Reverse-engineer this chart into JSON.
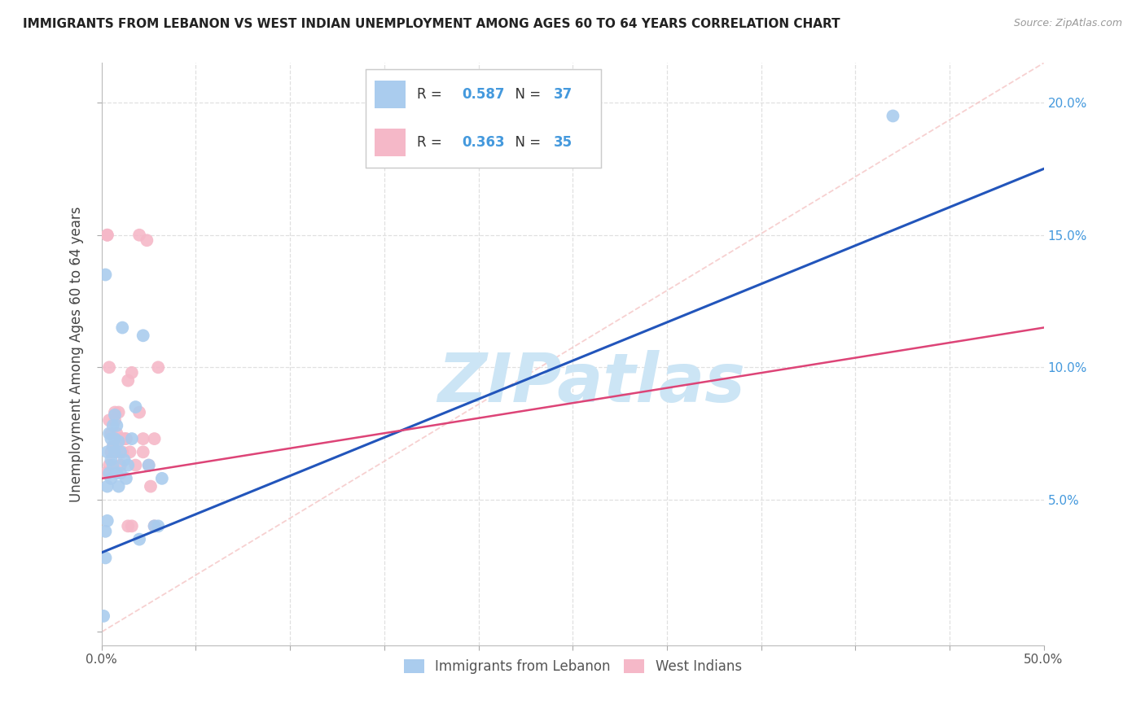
{
  "title": "IMMIGRANTS FROM LEBANON VS WEST INDIAN UNEMPLOYMENT AMONG AGES 60 TO 64 YEARS CORRELATION CHART",
  "source": "Source: ZipAtlas.com",
  "ylabel": "Unemployment Among Ages 60 to 64 years",
  "xlim": [
    0,
    0.5
  ],
  "ylim": [
    -0.005,
    0.215
  ],
  "background_color": "#ffffff",
  "grid_color": "#e0e0e0",
  "watermark_text": "ZIPatlas",
  "watermark_color": "#cce5f5",
  "lebanon_color": "#aaccee",
  "west_indian_color": "#f5b8c8",
  "lebanon_line_color": "#2255bb",
  "west_indian_line_color": "#dd4477",
  "diagonal_color": "#f5c5c5",
  "R_lebanon": 0.587,
  "N_lebanon": 37,
  "R_west_indian": 0.363,
  "N_west_indian": 35,
  "lebanon_line_x0": 0.0,
  "lebanon_line_y0": 0.03,
  "lebanon_line_x1": 0.5,
  "lebanon_line_y1": 0.175,
  "west_indian_line_x0": 0.0,
  "west_indian_line_y0": 0.058,
  "west_indian_line_x1": 0.5,
  "west_indian_line_y1": 0.115,
  "lebanon_x": [
    0.001,
    0.002,
    0.002,
    0.003,
    0.003,
    0.003,
    0.004,
    0.004,
    0.005,
    0.005,
    0.005,
    0.006,
    0.006,
    0.006,
    0.007,
    0.007,
    0.007,
    0.008,
    0.008,
    0.009,
    0.009,
    0.01,
    0.01,
    0.011,
    0.012,
    0.013,
    0.014,
    0.016,
    0.018,
    0.02,
    0.022,
    0.025,
    0.028,
    0.03,
    0.032,
    0.42,
    0.002
  ],
  "lebanon_y": [
    0.006,
    0.028,
    0.038,
    0.042,
    0.055,
    0.068,
    0.06,
    0.075,
    0.058,
    0.065,
    0.073,
    0.063,
    0.07,
    0.078,
    0.068,
    0.073,
    0.082,
    0.06,
    0.078,
    0.055,
    0.072,
    0.06,
    0.068,
    0.115,
    0.065,
    0.058,
    0.063,
    0.073,
    0.085,
    0.035,
    0.112,
    0.063,
    0.04,
    0.04,
    0.058,
    0.195,
    0.135
  ],
  "west_indian_x": [
    0.002,
    0.003,
    0.004,
    0.004,
    0.005,
    0.005,
    0.006,
    0.007,
    0.007,
    0.008,
    0.008,
    0.009,
    0.01,
    0.01,
    0.011,
    0.012,
    0.013,
    0.014,
    0.015,
    0.016,
    0.018,
    0.02,
    0.022,
    0.022,
    0.024,
    0.025,
    0.026,
    0.028,
    0.028,
    0.03,
    0.003,
    0.004,
    0.02,
    0.014,
    0.016
  ],
  "west_indian_y": [
    0.06,
    0.15,
    0.08,
    0.063,
    0.075,
    0.068,
    0.07,
    0.08,
    0.083,
    0.068,
    0.075,
    0.083,
    0.073,
    0.063,
    0.068,
    0.073,
    0.073,
    0.095,
    0.068,
    0.098,
    0.063,
    0.083,
    0.068,
    0.073,
    0.148,
    0.063,
    0.055,
    0.04,
    0.073,
    0.1,
    0.15,
    0.1,
    0.15,
    0.04,
    0.04
  ]
}
